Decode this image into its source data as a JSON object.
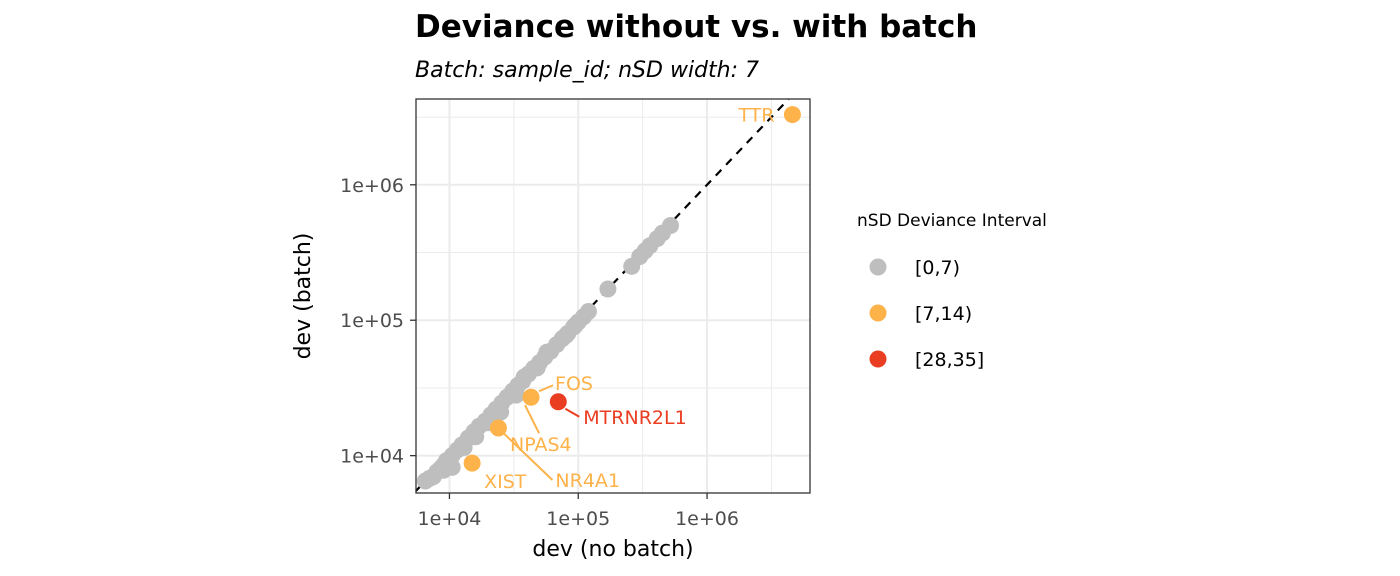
{
  "chart_data": {
    "type": "scatter",
    "title": "Deviance without vs. with batch",
    "subtitle": "Batch: sample_id; nSD width: 7",
    "xlabel": "dev (no batch)",
    "ylabel": "dev (batch)",
    "x_scale": "log10",
    "y_scale": "log10",
    "xlim": [
      5500,
      6300000
    ],
    "ylim": [
      5300,
      4300000
    ],
    "x_ticks": [
      10000,
      100000,
      1000000
    ],
    "x_tick_labels": [
      "1e+04",
      "1e+05",
      "1e+06"
    ],
    "y_ticks": [
      10000,
      100000,
      1000000
    ],
    "y_tick_labels": [
      "1e+04",
      "1e+05",
      "1e+06"
    ],
    "grid": true,
    "reference_line": "y = x (dashed)",
    "legend": {
      "title": "nSD Deviance Interval",
      "placement": "right",
      "entries": [
        {
          "label": "[0,7)",
          "color": "#bebebe"
        },
        {
          "label": "[7,14)",
          "color": "#fdb24a"
        },
        {
          "label": "[28,35]",
          "color": "#ea3e22"
        }
      ]
    },
    "series": [
      {
        "name": "[0,7)",
        "color": "#bebebe",
        "points": [
          [
            6500,
            6500
          ],
          [
            7000,
            6800
          ],
          [
            7500,
            7000
          ],
          [
            8000,
            7600
          ],
          [
            8500,
            8000
          ],
          [
            9000,
            8500
          ],
          [
            9500,
            9200
          ],
          [
            10500,
            10000
          ],
          [
            11500,
            11000
          ],
          [
            12500,
            12000
          ],
          [
            14000,
            13500
          ],
          [
            15500,
            15000
          ],
          [
            17000,
            16500
          ],
          [
            19000,
            18000
          ],
          [
            21000,
            20000
          ],
          [
            23000,
            22000
          ],
          [
            25500,
            24500
          ],
          [
            28000,
            27000
          ],
          [
            31000,
            30000
          ],
          [
            34000,
            33000
          ],
          [
            37000,
            35500
          ],
          [
            41000,
            40000
          ],
          [
            45000,
            44000
          ],
          [
            50000,
            48500
          ],
          [
            55000,
            53500
          ],
          [
            61000,
            59000
          ],
          [
            68000,
            66000
          ],
          [
            75000,
            73000
          ],
          [
            83000,
            80000
          ],
          [
            92000,
            89000
          ],
          [
            100000,
            97000
          ],
          [
            110000,
            106000
          ],
          [
            120000,
            116000
          ],
          [
            9000,
            7800
          ],
          [
            10500,
            8200
          ],
          [
            13000,
            11500
          ],
          [
            16000,
            13800
          ],
          [
            20000,
            17500
          ],
          [
            25000,
            21000
          ],
          [
            33000,
            28000
          ],
          [
            38000,
            38000
          ],
          [
            48000,
            44500
          ],
          [
            57000,
            58000
          ],
          [
            80000,
            77000
          ],
          [
            95000,
            92000
          ],
          [
            170000,
            170000
          ],
          [
            260000,
            250000
          ],
          [
            300000,
            295000
          ],
          [
            330000,
            325000
          ],
          [
            360000,
            355000
          ],
          [
            410000,
            400000
          ],
          [
            450000,
            440000
          ],
          [
            520000,
            500000
          ]
        ]
      },
      {
        "name": "[7,14)",
        "color": "#fdb24a",
        "points": [
          [
            4600000,
            3300000
          ],
          [
            15000,
            8800
          ],
          [
            24000,
            16000
          ],
          [
            43000,
            27000
          ]
        ]
      },
      {
        "name": "[28,35]",
        "color": "#ea3e22",
        "points": [
          [
            70000,
            25000
          ]
        ]
      }
    ],
    "annotations": [
      {
        "text": "TTR",
        "x": 4600000,
        "y": 3300000,
        "color": "#fdb24a"
      },
      {
        "text": "FOS",
        "x": 43000,
        "y": 27000,
        "color": "#fdb24a"
      },
      {
        "text": "NPAS4",
        "x": 43000,
        "y": 27000,
        "color": "#fdb24a"
      },
      {
        "text": "NR4A1",
        "x": 24000,
        "y": 16000,
        "color": "#fdb24a"
      },
      {
        "text": "XIST",
        "x": 15000,
        "y": 8800,
        "color": "#fdb24a"
      },
      {
        "text": "MTRNR2L1",
        "x": 70000,
        "y": 25000,
        "color": "#ea3e22"
      }
    ]
  }
}
